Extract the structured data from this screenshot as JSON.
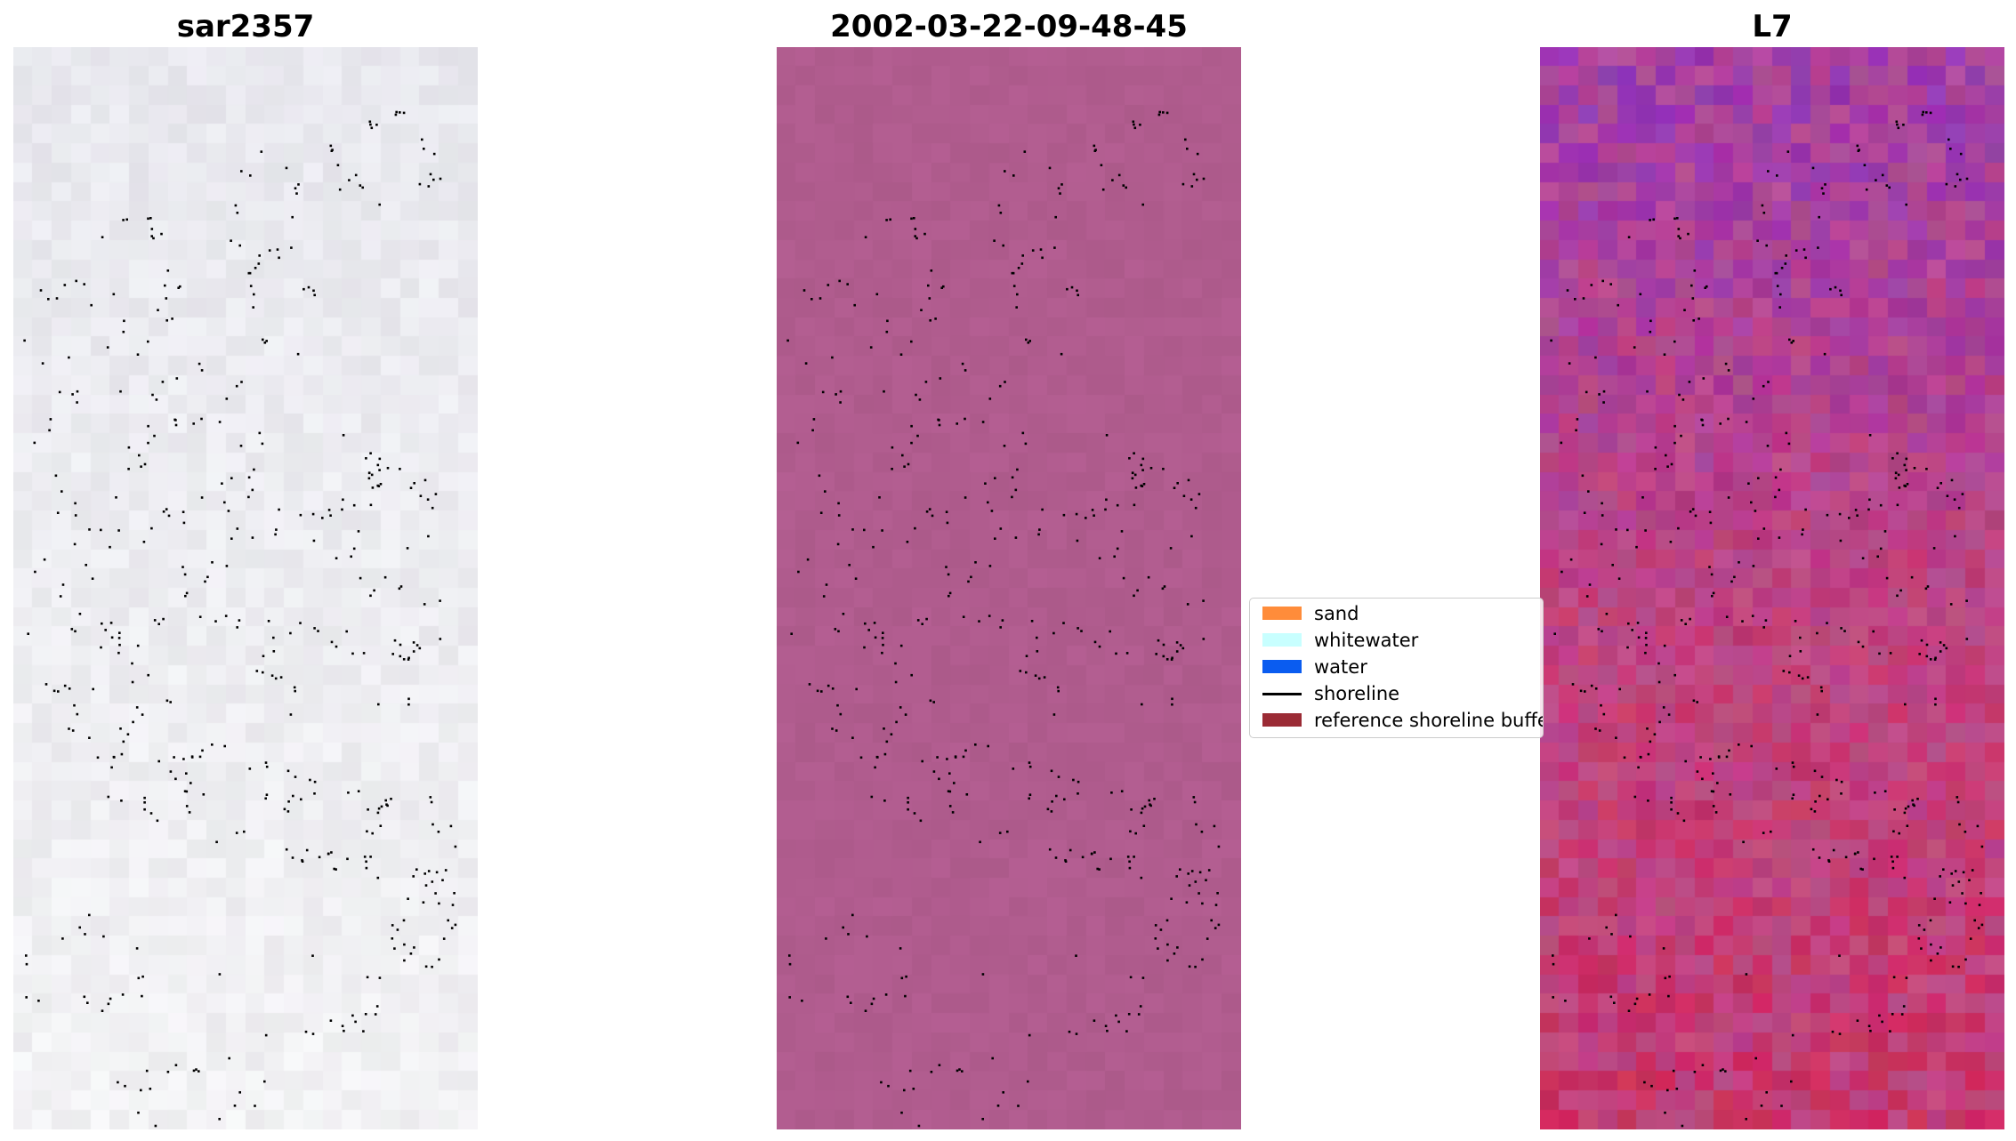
{
  "panels": [
    {
      "title": "sar2357",
      "base_color": "#e8e8ee",
      "variation": "light",
      "tile_cols": 24,
      "tile_rows": 56
    },
    {
      "title": "2002-03-22-09-48-45",
      "base_color": "#b05c8e",
      "variation": "smooth",
      "tile_cols": 24,
      "tile_rows": 56
    },
    {
      "title": "L7",
      "base_color": "#b9508f",
      "variation": "noisy",
      "tile_cols": 24,
      "tile_rows": 56
    }
  ],
  "legend": {
    "items": [
      {
        "label": "sand",
        "kind": "patch",
        "color": "#ff8c3a"
      },
      {
        "label": "whitewater",
        "kind": "patch",
        "color": "#c8ffff"
      },
      {
        "label": "water",
        "kind": "patch",
        "color": "#0a5cf0"
      },
      {
        "label": "shoreline",
        "kind": "line",
        "color": "#000000"
      },
      {
        "label": "reference shoreline buffer",
        "kind": "patch",
        "color": "#9b2b35"
      }
    ]
  },
  "colors": {
    "l7_purple": "#8a2fbf",
    "l7_red": "#d41e4c",
    "dot": "#000000"
  }
}
